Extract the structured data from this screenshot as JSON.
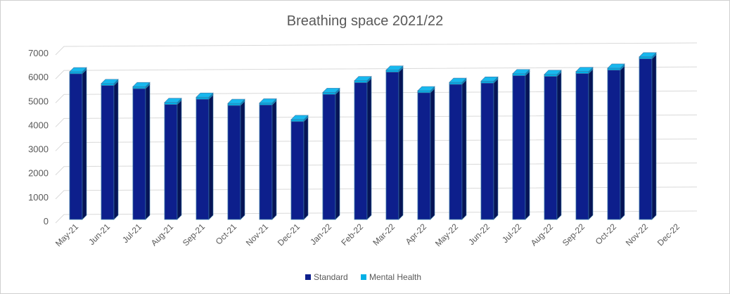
{
  "chart_data": {
    "type": "bar",
    "stacked": true,
    "style": "3d-column",
    "title": "Breathing space 2021/22",
    "xlabel": "",
    "ylabel": "",
    "ylim": [
      0,
      7000
    ],
    "yticks": [
      0,
      1000,
      2000,
      3000,
      4000,
      5000,
      6000,
      7000
    ],
    "grid": true,
    "legend_position": "bottom",
    "categories": [
      "May-21",
      "Jun-21",
      "Jul-21",
      "Aug-21",
      "Sep-21",
      "Oct-21",
      "Nov-21",
      "Dec-21",
      "Jan-22",
      "Feb-22",
      "Mar-22",
      "Apr-22",
      "May-22",
      "Jun-22",
      "Jul-22",
      "Aug-22",
      "Sep-22",
      "Oct-22",
      "Nov-22",
      "Dec-22"
    ],
    "series": [
      {
        "name": "Standard",
        "color": "#0d1f8c",
        "values": [
          6070,
          5580,
          5450,
          4790,
          5010,
          4750,
          4770,
          4080,
          5210,
          5700,
          6140,
          5280,
          5630,
          5680,
          5990,
          5960,
          6080,
          6220,
          6690,
          null
        ]
      },
      {
        "name": "Mental Health",
        "color": "#00b0e6",
        "values": [
          80,
          80,
          80,
          80,
          80,
          80,
          80,
          80,
          80,
          80,
          80,
          80,
          80,
          80,
          80,
          80,
          80,
          80,
          80,
          null
        ]
      }
    ]
  }
}
